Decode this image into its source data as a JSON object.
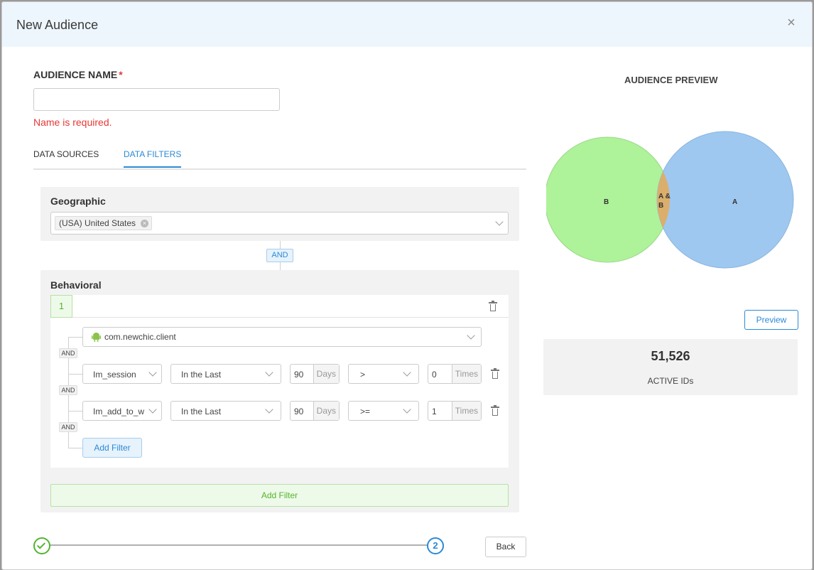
{
  "modal": {
    "title": "New Audience",
    "close_label": "×"
  },
  "form": {
    "audience_name_label": "AUDIENCE NAME",
    "required_mark": "*",
    "audience_name_value": "",
    "audience_name_placeholder": "",
    "name_error": "Name is required."
  },
  "tabs": [
    {
      "label": "DATA SOURCES",
      "active": false
    },
    {
      "label": "DATA FILTERS",
      "active": true
    }
  ],
  "geographic": {
    "title": "Geographic",
    "selected_tag": "(USA) United States",
    "tag_remove": "×"
  },
  "connector_and": "AND",
  "behavioral": {
    "title": "Behavioral",
    "group_index": "1",
    "app_select": "com.newchic.client",
    "and_label": "AND",
    "filters": [
      {
        "event": "Im_session",
        "period": "In the Last",
        "days_value": "90",
        "days_unit": "Days",
        "operator": ">",
        "times_value": "0",
        "times_unit": "Times"
      },
      {
        "event": "Im_add_to_w",
        "period": "In the Last",
        "days_value": "90",
        "days_unit": "Days",
        "operator": ">=",
        "times_value": "1",
        "times_unit": "Times"
      }
    ],
    "add_filter_inner": "Add Filter",
    "add_filter_outer": "Add Filter"
  },
  "preview": {
    "title": "AUDIENCE PREVIEW",
    "venn": {
      "label_b": "B",
      "label_a": "A",
      "label_ab_line1": "A &",
      "label_ab_line2": "B",
      "color_b": "#aef29a",
      "color_a": "#9fc8f0",
      "color_ab": "#dcae6c"
    },
    "button": "Preview",
    "count": "51,526",
    "count_label": "ACTIVE IDs"
  },
  "stepper": {
    "step2_label": "2"
  },
  "footer": {
    "back_label": "Back"
  }
}
